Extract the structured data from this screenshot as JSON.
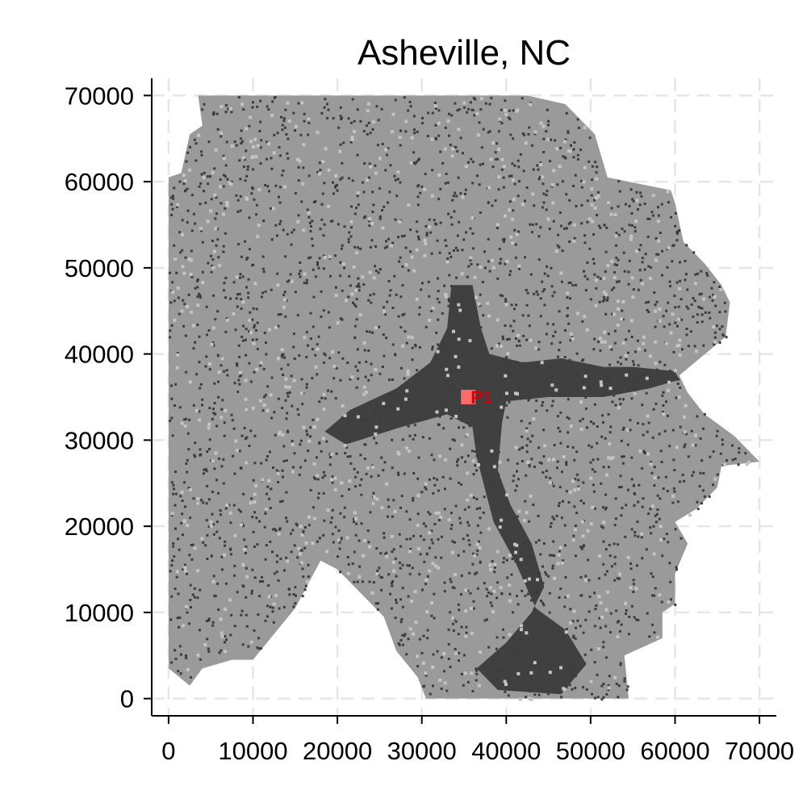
{
  "chart_data": {
    "type": "scatter",
    "title": "Asheville, NC",
    "xlabel": "",
    "ylabel": "",
    "xlim": [
      -2000,
      72000
    ],
    "ylim": [
      -2000,
      72000
    ],
    "xticks": [
      0,
      10000,
      20000,
      30000,
      40000,
      50000,
      60000,
      70000
    ],
    "yticks": [
      0,
      10000,
      20000,
      30000,
      40000,
      50000,
      60000,
      70000
    ],
    "xtick_labels": [
      "0",
      "10000",
      "20000",
      "30000",
      "40000",
      "50000",
      "60000",
      "70000"
    ],
    "ytick_labels": [
      "0",
      "10000",
      "20000",
      "30000",
      "40000",
      "50000",
      "60000",
      "70000"
    ],
    "grid": true,
    "layers": [
      {
        "name": "",
        "kind": "region",
        "color": "#9a9a9a",
        "boundary": [
          [
            3500,
            70000
          ],
          [
            34500,
            70000
          ],
          [
            42500,
            70000
          ],
          [
            47000,
            69000
          ],
          [
            50500,
            65500
          ],
          [
            52000,
            60500
          ],
          [
            54500,
            60000
          ],
          [
            59500,
            59000
          ],
          [
            60000,
            57500
          ],
          [
            61000,
            53000
          ],
          [
            63500,
            50500
          ],
          [
            65500,
            48000
          ],
          [
            66500,
            46000
          ],
          [
            66000,
            42000
          ],
          [
            60500,
            37500
          ],
          [
            61500,
            35500
          ],
          [
            63500,
            33000
          ],
          [
            67000,
            30500
          ],
          [
            70000,
            27500
          ],
          [
            65500,
            27000
          ],
          [
            65000,
            24500
          ],
          [
            62500,
            22000
          ],
          [
            60000,
            20500
          ],
          [
            61500,
            18000
          ],
          [
            60000,
            14500
          ],
          [
            60000,
            11000
          ],
          [
            58500,
            10000
          ],
          [
            58500,
            7000
          ],
          [
            54000,
            5000
          ],
          [
            54500,
            0
          ],
          [
            30500,
            0
          ],
          [
            29500,
            2500
          ],
          [
            27000,
            5500
          ],
          [
            25500,
            9500
          ],
          [
            20000,
            15000
          ],
          [
            18000,
            16000
          ],
          [
            15000,
            10500
          ],
          [
            10000,
            4500
          ],
          [
            7500,
            4500
          ],
          [
            4000,
            3500
          ],
          [
            2500,
            1500
          ],
          [
            0,
            3500
          ],
          [
            0,
            60500
          ],
          [
            1500,
            61000
          ],
          [
            2500,
            65500
          ],
          [
            4000,
            66500
          ]
        ]
      },
      {
        "name": "",
        "kind": "region",
        "color": "#404040",
        "boundary": [
          [
            33500,
            48000
          ],
          [
            36000,
            48000
          ],
          [
            37000,
            43000
          ],
          [
            38000,
            40000
          ],
          [
            42000,
            39000
          ],
          [
            46500,
            39500
          ],
          [
            51500,
            38500
          ],
          [
            55000,
            38500
          ],
          [
            60000,
            38000
          ],
          [
            60500,
            37000
          ],
          [
            57000,
            36000
          ],
          [
            51500,
            35000
          ],
          [
            45000,
            35000
          ],
          [
            40000,
            34500
          ],
          [
            39500,
            32000
          ],
          [
            39000,
            26500
          ],
          [
            40500,
            22500
          ],
          [
            43000,
            18000
          ],
          [
            44500,
            13000
          ],
          [
            43000,
            10000
          ],
          [
            40000,
            6500
          ],
          [
            36500,
            3500
          ],
          [
            39000,
            1000
          ],
          [
            46500,
            500
          ],
          [
            49500,
            4000
          ],
          [
            47000,
            8000
          ],
          [
            43500,
            10500
          ],
          [
            41000,
            16000
          ],
          [
            38500,
            20500
          ],
          [
            36500,
            28000
          ],
          [
            36000,
            31500
          ],
          [
            33000,
            33000
          ],
          [
            27500,
            31500
          ],
          [
            21000,
            29500
          ],
          [
            18500,
            31000
          ],
          [
            21500,
            33500
          ],
          [
            27000,
            36000
          ],
          [
            31000,
            39000
          ],
          [
            33000,
            43000
          ]
        ]
      },
      {
        "name": "",
        "kind": "region",
        "color": "#9a9a9a",
        "boundary": [
          [
            32500,
            31500
          ],
          [
            35000,
            31500
          ],
          [
            35500,
            28000
          ],
          [
            35000,
            24000
          ],
          [
            34000,
            23000
          ],
          [
            32000,
            24500
          ],
          [
            31500,
            27500
          ]
        ]
      }
    ],
    "points": [
      {
        "label": "P1",
        "x": 35500,
        "y": 35000,
        "color": "#ff6b6b"
      }
    ]
  }
}
